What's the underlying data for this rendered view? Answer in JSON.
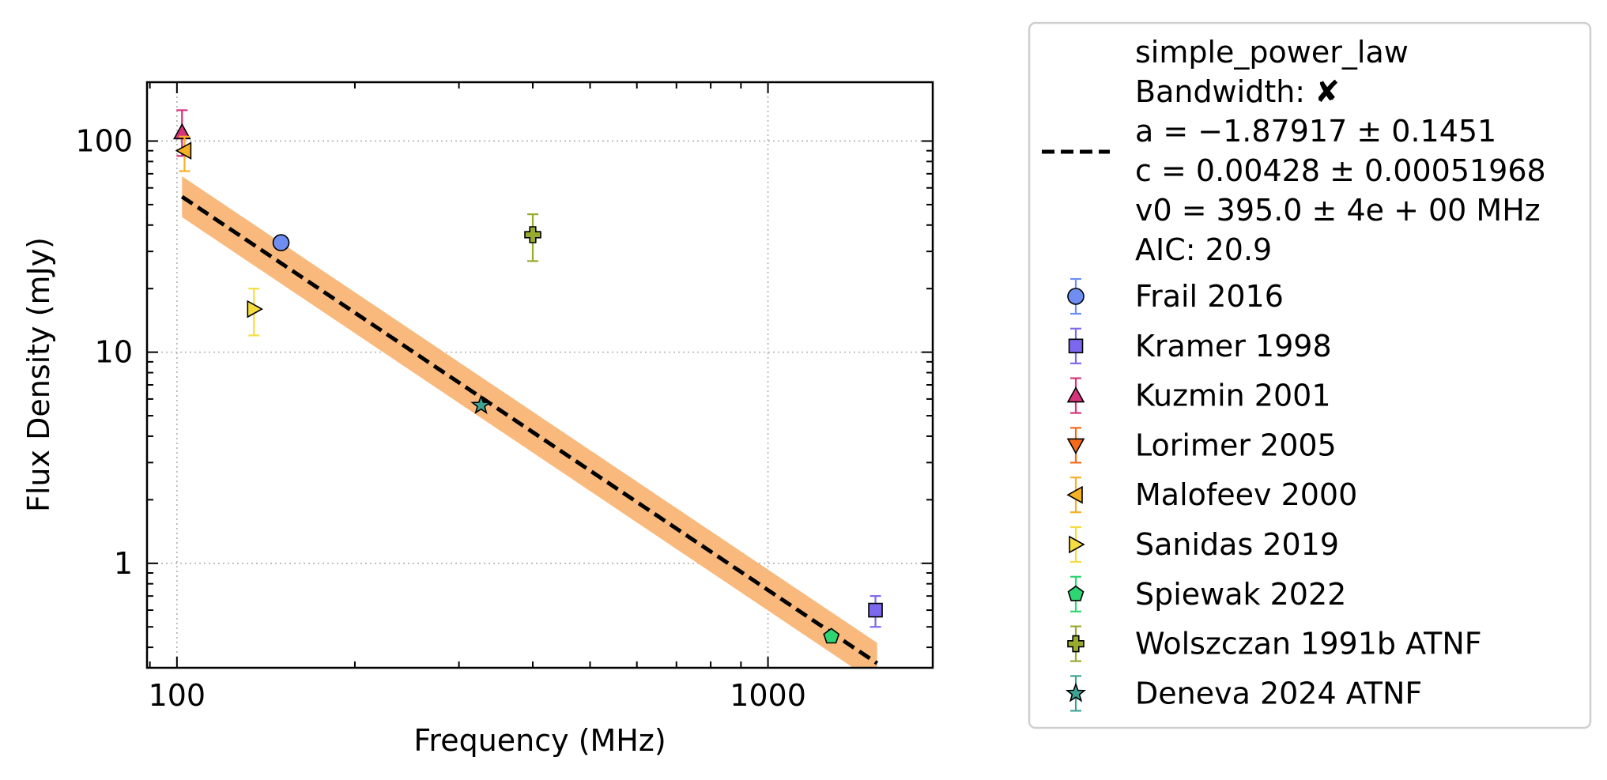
{
  "chart_data": {
    "type": "scatter",
    "title": "",
    "xlabel": "Frequency (MHz)",
    "ylabel": "Flux Density (mJy)",
    "xscale": "log",
    "yscale": "log",
    "xlim": [
      89,
      1900
    ],
    "ylim": [
      0.32,
      190
    ],
    "grid": true,
    "x_ticks": [
      {
        "value": 100,
        "label": "100"
      },
      {
        "value": 1000,
        "label": "1000"
      }
    ],
    "y_ticks": [
      {
        "value": 1,
        "label": "1"
      },
      {
        "value": 10,
        "label": "10"
      },
      {
        "value": 100,
        "label": "100"
      }
    ],
    "legend_position": "outside-right",
    "fit": {
      "model": "simple_power_law",
      "legend_lines": [
        "simple_power_law",
        "Bandwidth: ✘",
        "a = −1.87917 ± 0.1451",
        "c = 0.00428 ± 0.00051968",
        "v0 = 395.0 ± 4e + 00 MHz",
        "AIC: 20.9"
      ],
      "a": -1.87917,
      "c": 0.00428,
      "v0": 395.0,
      "x_range": [
        102,
        1530
      ],
      "line_color": "#000000",
      "band_color": "#f9b97c"
    },
    "series": [
      {
        "name": "Frail 2016",
        "marker": "circle",
        "color": "#6f8ef2",
        "errcolor": "#6f8ef2",
        "points": [
          {
            "x": 150,
            "y": 33,
            "yerr": [
              33,
              33
            ]
          }
        ]
      },
      {
        "name": "Kramer 1998",
        "marker": "square",
        "color": "#7b68ee",
        "errcolor": "#7b68ee",
        "points": [
          {
            "x": 1520,
            "y": 0.6,
            "yerr": [
              0.5,
              0.7
            ]
          }
        ]
      },
      {
        "name": "Kuzmin 2001",
        "marker": "triangle-up",
        "color": "#d6337a",
        "errcolor": "#d6337a",
        "points": [
          {
            "x": 102,
            "y": 110,
            "yerr": [
              85,
              140
            ]
          }
        ]
      },
      {
        "name": "Lorimer 2005",
        "marker": "triangle-down",
        "color": "#f56a1a",
        "errcolor": "#f56a1a",
        "points": []
      },
      {
        "name": "Malofeev 2000",
        "marker": "triangle-left",
        "color": "#f7b125",
        "errcolor": "#f7b125",
        "points": [
          {
            "x": 103,
            "y": 90,
            "yerr": [
              72,
              105
            ]
          }
        ]
      },
      {
        "name": "Sanidas 2019",
        "marker": "triangle-right",
        "color": "#f5dd3f",
        "errcolor": "#f5dd3f",
        "points": [
          {
            "x": 135,
            "y": 16,
            "yerr": [
              12,
              20
            ]
          }
        ]
      },
      {
        "name": "Spiewak 2022",
        "marker": "pentagon",
        "color": "#2ed573",
        "errcolor": "#2ed573",
        "points": [
          {
            "x": 1280,
            "y": 0.45,
            "yerr": [
              0.43,
              0.47
            ]
          }
        ]
      },
      {
        "name": "Wolszczan 1991b ATNF",
        "marker": "plus",
        "color": "#98ab2e",
        "errcolor": "#98ab2e",
        "points": [
          {
            "x": 400,
            "y": 36,
            "yerr": [
              27,
              45
            ]
          }
        ]
      },
      {
        "name": "Deneva 2024 ATNF",
        "marker": "star",
        "color": "#3fa394",
        "errcolor": "#3fa394",
        "points": [
          {
            "x": 327,
            "y": 5.6,
            "yerr": [
              5.6,
              5.6
            ]
          }
        ]
      }
    ]
  }
}
